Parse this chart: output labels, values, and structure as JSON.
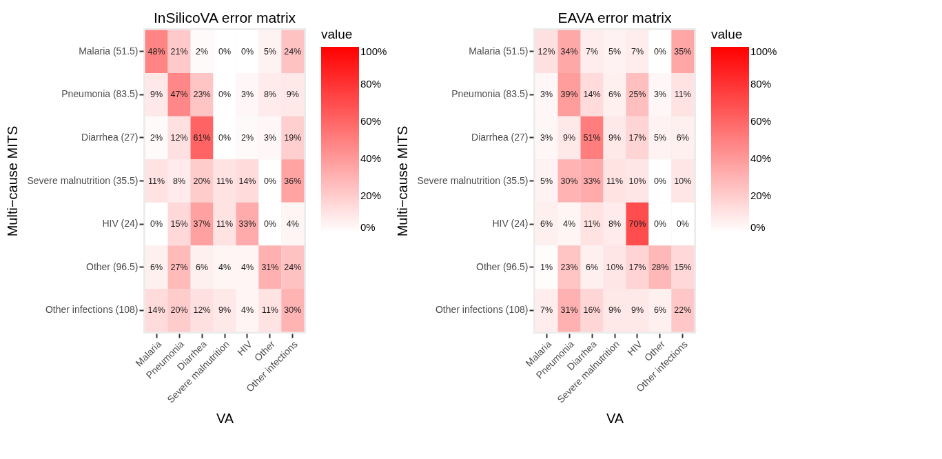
{
  "chart_data": [
    {
      "type": "heatmap",
      "title": "InSilicoVA error matrix",
      "xlabel": "VA",
      "ylabel": "Multi−cause MITS",
      "legend_title": "value",
      "categories": [
        "Malaria",
        "Pneumonia",
        "Diarrhea",
        "Severe malnutrition",
        "HIV",
        "Other",
        "Other infections"
      ],
      "y_categories": [
        "Malaria (51.5)",
        "Pneumonia (83.5)",
        "Diarrhea (27)",
        "Severe malnutrition (35.5)",
        "HIV (24)",
        "Other (96.5)",
        "Other infections (108)"
      ],
      "cells": [
        [
          48,
          21,
          2,
          0,
          0,
          5,
          24
        ],
        [
          9,
          47,
          23,
          0,
          3,
          8,
          9
        ],
        [
          2,
          12,
          61,
          0,
          2,
          3,
          19
        ],
        [
          11,
          8,
          20,
          11,
          14,
          0,
          36
        ],
        [
          0,
          15,
          37,
          11,
          33,
          0,
          4
        ],
        [
          6,
          27,
          6,
          4,
          4,
          31,
          24
        ],
        [
          14,
          20,
          12,
          9,
          4,
          11,
          30
        ]
      ],
      "cell_labels": [
        [
          "48%",
          "21%",
          "2%",
          "0%",
          "0%",
          "5%",
          "24%"
        ],
        [
          "9%",
          "47%",
          "23%",
          "0%",
          "3%",
          "8%",
          "9%"
        ],
        [
          "2%",
          "12%",
          "61%",
          "0%",
          "2%",
          "3%",
          "19%"
        ],
        [
          "11%",
          "8%",
          "20%",
          "11%",
          "14%",
          "0%",
          "36%"
        ],
        [
          "0%",
          "15%",
          "37%",
          "11%",
          "33%",
          "0%",
          "4%"
        ],
        [
          "6%",
          "27%",
          "6%",
          "4%",
          "4%",
          "31%",
          "24%"
        ],
        [
          "14%",
          "20%",
          "12%",
          "9%",
          "4%",
          "11%",
          "30%"
        ]
      ],
      "clim": [
        0,
        100
      ],
      "cticks": [
        {
          "value": 0,
          "label": "0%"
        },
        {
          "value": 20,
          "label": "20%"
        },
        {
          "value": 40,
          "label": "40%"
        },
        {
          "value": 60,
          "label": "60%"
        },
        {
          "value": 80,
          "label": "80%"
        },
        {
          "value": 100,
          "label": "100%"
        }
      ]
    },
    {
      "type": "heatmap",
      "title": "EAVA error matrix",
      "xlabel": "VA",
      "ylabel": "Multi−cause MITS",
      "legend_title": "value",
      "categories": [
        "Malaria",
        "Pneumonia",
        "Diarrhea",
        "Severe malnutrition",
        "HIV",
        "Other",
        "Other infections"
      ],
      "y_categories": [
        "Malaria (51.5)",
        "Pneumonia (83.5)",
        "Diarrhea (27)",
        "Severe malnutrition (35.5)",
        "HIV (24)",
        "Other (96.5)",
        "Other infections (108)"
      ],
      "cells": [
        [
          12,
          34,
          7,
          5,
          7,
          0,
          35
        ],
        [
          3,
          39,
          14,
          6,
          25,
          3,
          11
        ],
        [
          3,
          9,
          51,
          9,
          17,
          5,
          6
        ],
        [
          5,
          30,
          33,
          11,
          10,
          0,
          10
        ],
        [
          6,
          4,
          11,
          8,
          70,
          0,
          0
        ],
        [
          1,
          23,
          6,
          10,
          17,
          28,
          15
        ],
        [
          7,
          31,
          16,
          9,
          9,
          6,
          22
        ]
      ],
      "cell_labels": [
        [
          "12%",
          "34%",
          "7%",
          "5%",
          "7%",
          "0%",
          "35%"
        ],
        [
          "3%",
          "39%",
          "14%",
          "6%",
          "25%",
          "3%",
          "11%"
        ],
        [
          "3%",
          "9%",
          "51%",
          "9%",
          "17%",
          "5%",
          "6%"
        ],
        [
          "5%",
          "30%",
          "33%",
          "11%",
          "10%",
          "0%",
          "10%"
        ],
        [
          "6%",
          "4%",
          "11%",
          "8%",
          "70%",
          "0%",
          "0%"
        ],
        [
          "1%",
          "23%",
          "6%",
          "10%",
          "17%",
          "28%",
          "15%"
        ],
        [
          "7%",
          "31%",
          "16%",
          "9%",
          "9%",
          "6%",
          "22%"
        ]
      ],
      "clim": [
        0,
        100
      ],
      "cticks": [
        {
          "value": 0,
          "label": "0%"
        },
        {
          "value": 20,
          "label": "20%"
        },
        {
          "value": 40,
          "label": "40%"
        },
        {
          "value": 60,
          "label": "60%"
        },
        {
          "value": 80,
          "label": "80%"
        },
        {
          "value": 100,
          "label": "100%"
        }
      ]
    }
  ]
}
